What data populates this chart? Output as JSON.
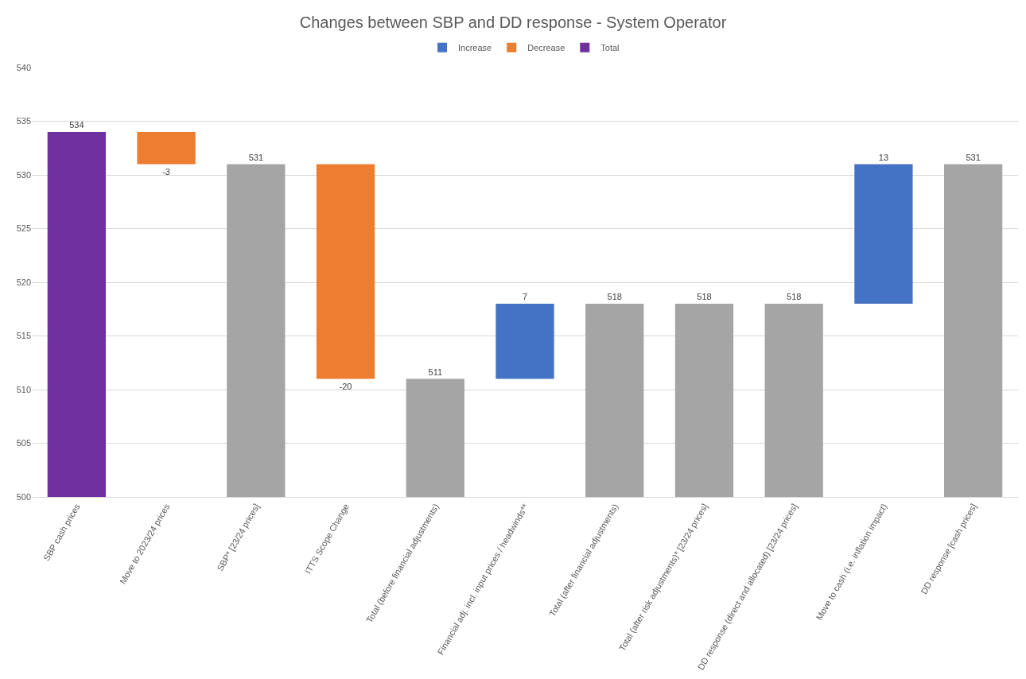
{
  "chart_data": {
    "type": "bar",
    "title": "Changes between SBP and DD response - System Operator",
    "categories": [
      "SBP cash prices",
      "Move to 2023/24 prices",
      "SBP* [23/24 prices]",
      "ITTS Scope Change",
      "Total (before financial adjustments)",
      "Financial adj. incl. input prices / headwinds**",
      "Total (after financial adjustments)",
      "Total (after risk adjustments)* [23/24 prices]",
      "DD response (direct and allocated) [23/24 prices]",
      "Move to cash (i.e. inflation impact)",
      "DD response [cash prices]"
    ],
    "series": [
      {
        "name": "Increase",
        "color": "#4472c4",
        "values": [
          null,
          null,
          null,
          null,
          null,
          7,
          null,
          null,
          null,
          13,
          null
        ],
        "base": [
          null,
          null,
          null,
          null,
          null,
          511,
          null,
          null,
          null,
          518,
          null
        ],
        "value_labels": [
          null,
          null,
          null,
          null,
          null,
          "7",
          null,
          null,
          null,
          "13",
          null
        ]
      },
      {
        "name": "Decrease",
        "color": "#ed7d31",
        "values": [
          null,
          -3,
          null,
          -20,
          null,
          null,
          null,
          null,
          null,
          null,
          null
        ],
        "base": [
          null,
          534,
          null,
          531,
          null,
          null,
          null,
          null,
          null,
          null,
          null
        ],
        "value_labels": [
          null,
          "-3",
          null,
          "-20",
          null,
          null,
          null,
          null,
          null,
          null,
          null
        ]
      },
      {
        "name": "Total",
        "color": "#a5a5a5",
        "colors": [
          "#7030a0",
          null,
          "#a5a5a5",
          null,
          "#a5a5a5",
          null,
          "#a5a5a5",
          "#a5a5a5",
          "#a5a5a5",
          null,
          "#a5a5a5"
        ],
        "values": [
          534,
          null,
          531,
          null,
          511,
          null,
          518,
          518,
          518,
          null,
          531
        ],
        "value_labels": [
          "534",
          null,
          "531",
          null,
          "511",
          null,
          "518",
          "518",
          "518",
          null,
          "531"
        ]
      }
    ],
    "ylim": [
      500,
      540
    ],
    "yticks": [
      500,
      505,
      510,
      515,
      520,
      525,
      530,
      535,
      540
    ],
    "grid": "y",
    "legend": "top"
  }
}
